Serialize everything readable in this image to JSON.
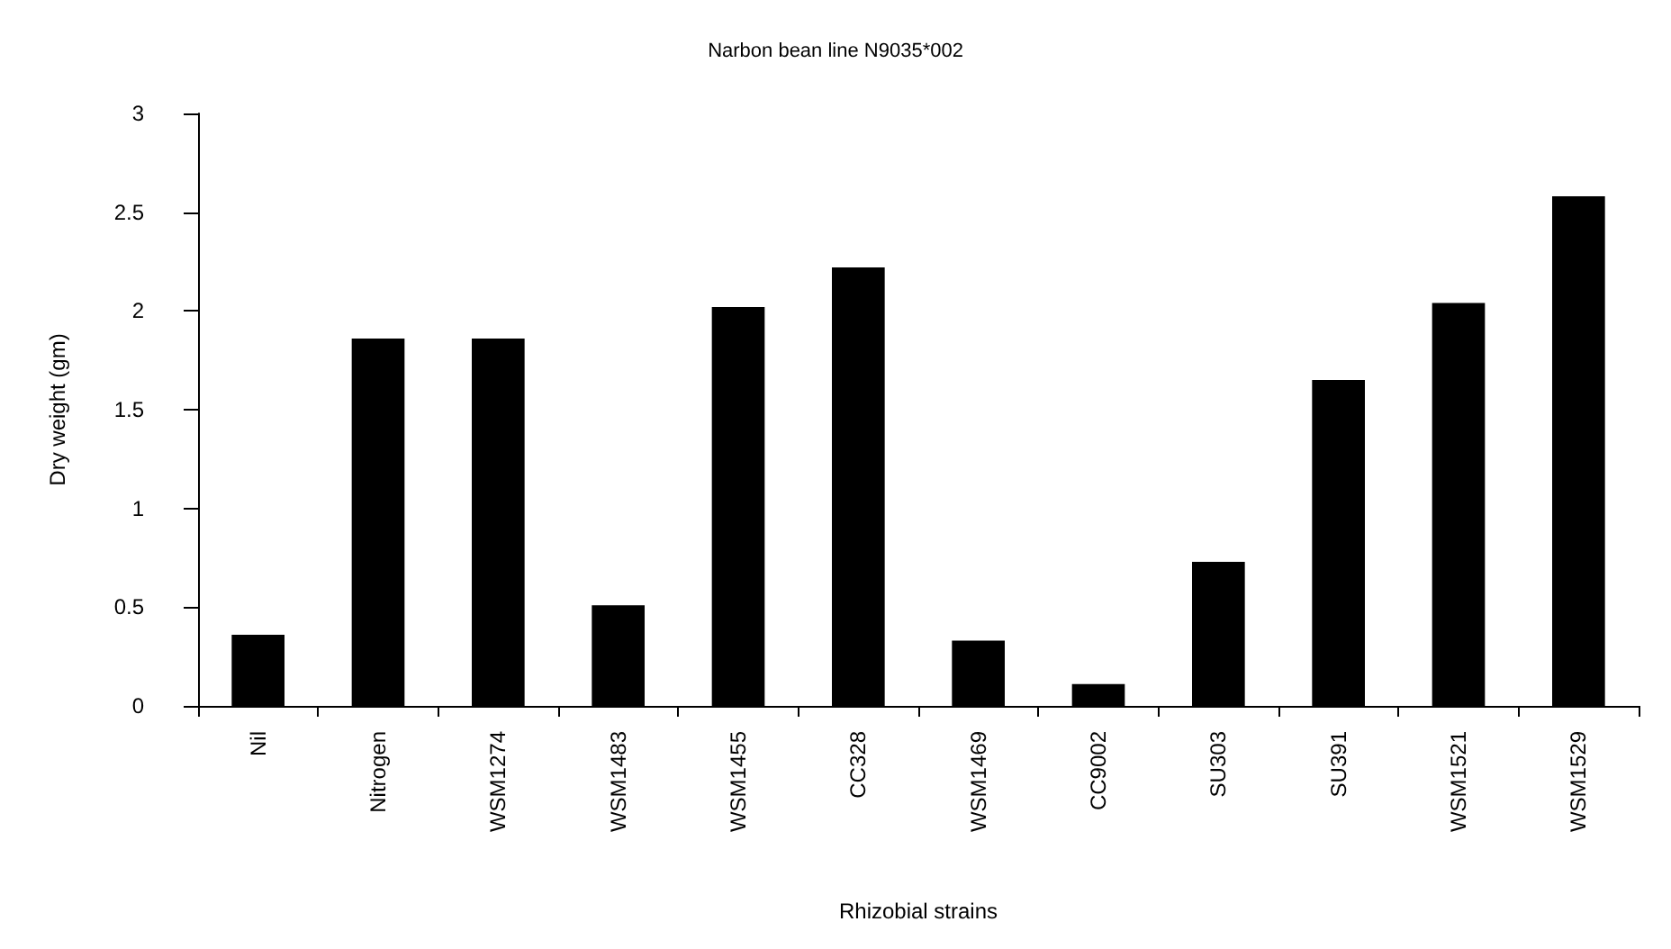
{
  "chart_data": {
    "type": "bar",
    "title": "Narbon bean line N9035*002",
    "xlabel": "Rhizobial strains",
    "ylabel": "Dry weight (gm)",
    "categories": [
      "Nil",
      "Nitrogen",
      "WSM1274",
      "WSM1483",
      "WSM1455",
      "CC328",
      "WSM1469",
      "CC9002",
      "SU303",
      "SU391",
      "WSM1521",
      "WSM1529"
    ],
    "values": [
      0.36,
      1.86,
      1.86,
      0.51,
      2.02,
      2.22,
      0.33,
      0.11,
      0.73,
      1.65,
      2.04,
      2.58
    ],
    "color": "#000000",
    "ylim": [
      0,
      3
    ],
    "yticks": [
      0,
      0.5,
      1,
      1.5,
      2,
      2.5,
      3
    ],
    "grid": false
  }
}
